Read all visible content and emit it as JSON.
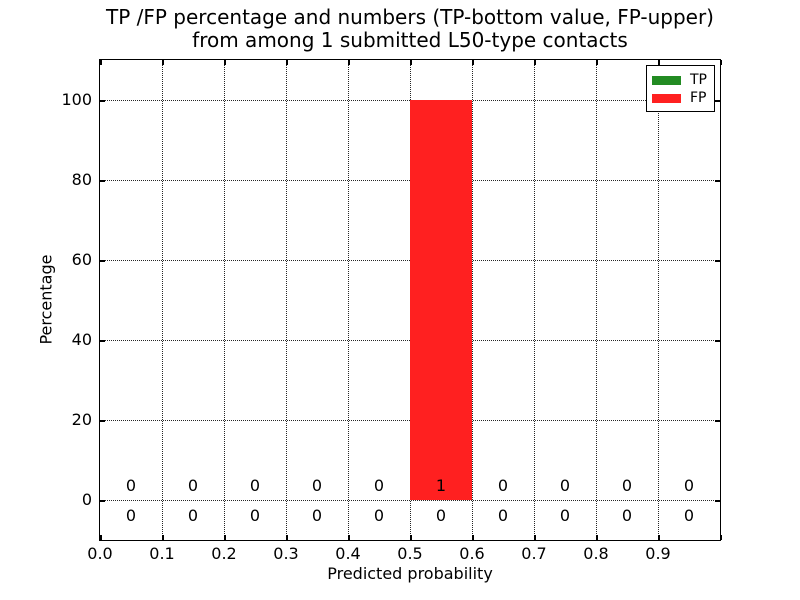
{
  "title": {
    "line1": "TP /FP percentage and numbers (TP-bottom value, FP-upper)",
    "line2": "from among 1 submitted L50-type contacts"
  },
  "axes": {
    "xlabel": "Predicted probability",
    "ylabel": "Percentage"
  },
  "legend": {
    "items": [
      {
        "label": "TP",
        "color": "#228b22"
      },
      {
        "label": "FP",
        "color": "#ff2020"
      }
    ]
  },
  "colors": {
    "tp_green": "#228b22",
    "fp_red": "#ff2020",
    "spine": "#000000",
    "grid": "#000000",
    "background": "#ffffff"
  },
  "chart_data": {
    "type": "bar",
    "title": "TP /FP percentage and numbers (TP-bottom value, FP-upper)\nfrom among 1 submitted L50-type contacts",
    "xlabel": "Predicted probability",
    "ylabel": "Percentage",
    "xlim": [
      0.0,
      1.0
    ],
    "ylim": [
      -10,
      110
    ],
    "x_tick_labels": [
      "0.0",
      "0.1",
      "0.2",
      "0.3",
      "0.4",
      "0.5",
      "0.6",
      "0.7",
      "0.8",
      "0.9"
    ],
    "y_ticks": [
      0,
      20,
      40,
      60,
      80,
      100
    ],
    "grid": "dotted both axes",
    "legend_position": "upper right",
    "bin_edges": [
      0.0,
      0.1,
      0.2,
      0.3,
      0.4,
      0.5,
      0.6,
      0.7,
      0.8,
      0.9,
      1.0
    ],
    "bin_centers": [
      0.05,
      0.15,
      0.25,
      0.35,
      0.45,
      0.55,
      0.65,
      0.75,
      0.85,
      0.95
    ],
    "series": [
      {
        "name": "TP",
        "color": "#228b22",
        "percentages": [
          0,
          0,
          0,
          0,
          0,
          0,
          0,
          0,
          0,
          0
        ],
        "counts": [
          0,
          0,
          0,
          0,
          0,
          0,
          0,
          0,
          0,
          0
        ],
        "count_row": "bottom"
      },
      {
        "name": "FP",
        "color": "#ff2020",
        "percentages": [
          0,
          0,
          0,
          0,
          0,
          100,
          0,
          0,
          0,
          0
        ],
        "counts": [
          0,
          0,
          0,
          0,
          0,
          1,
          0,
          0,
          0,
          0
        ],
        "count_row": "top"
      }
    ]
  }
}
